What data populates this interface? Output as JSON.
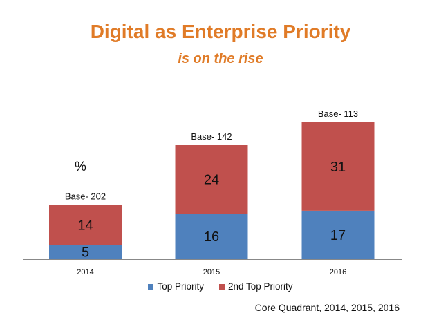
{
  "chart_data": {
    "type": "bar",
    "stacked": true,
    "title": "Digital as Enterprise Priority",
    "subtitle": "is on the rise",
    "unit_label": "%",
    "categories": [
      "2014",
      "2015",
      "2016"
    ],
    "series": [
      {
        "name": "Top Priority",
        "color": "#4f81bd",
        "values": [
          5,
          16,
          17
        ]
      },
      {
        "name": "2nd Top Priority",
        "color": "#c0504d",
        "values": [
          14,
          24,
          31
        ]
      }
    ],
    "annotations": [
      "Base- 202",
      "Base- 142",
      "Base- 113"
    ],
    "xlabel": "",
    "ylabel": "",
    "ylim": [
      0,
      48
    ],
    "grid": false,
    "legend_position": "bottom",
    "source": "Core Quadrant, 2014, 2015, 2016"
  },
  "colors": {
    "title": "#e07b27",
    "axis": "#888888",
    "label_text": "#111111"
  }
}
